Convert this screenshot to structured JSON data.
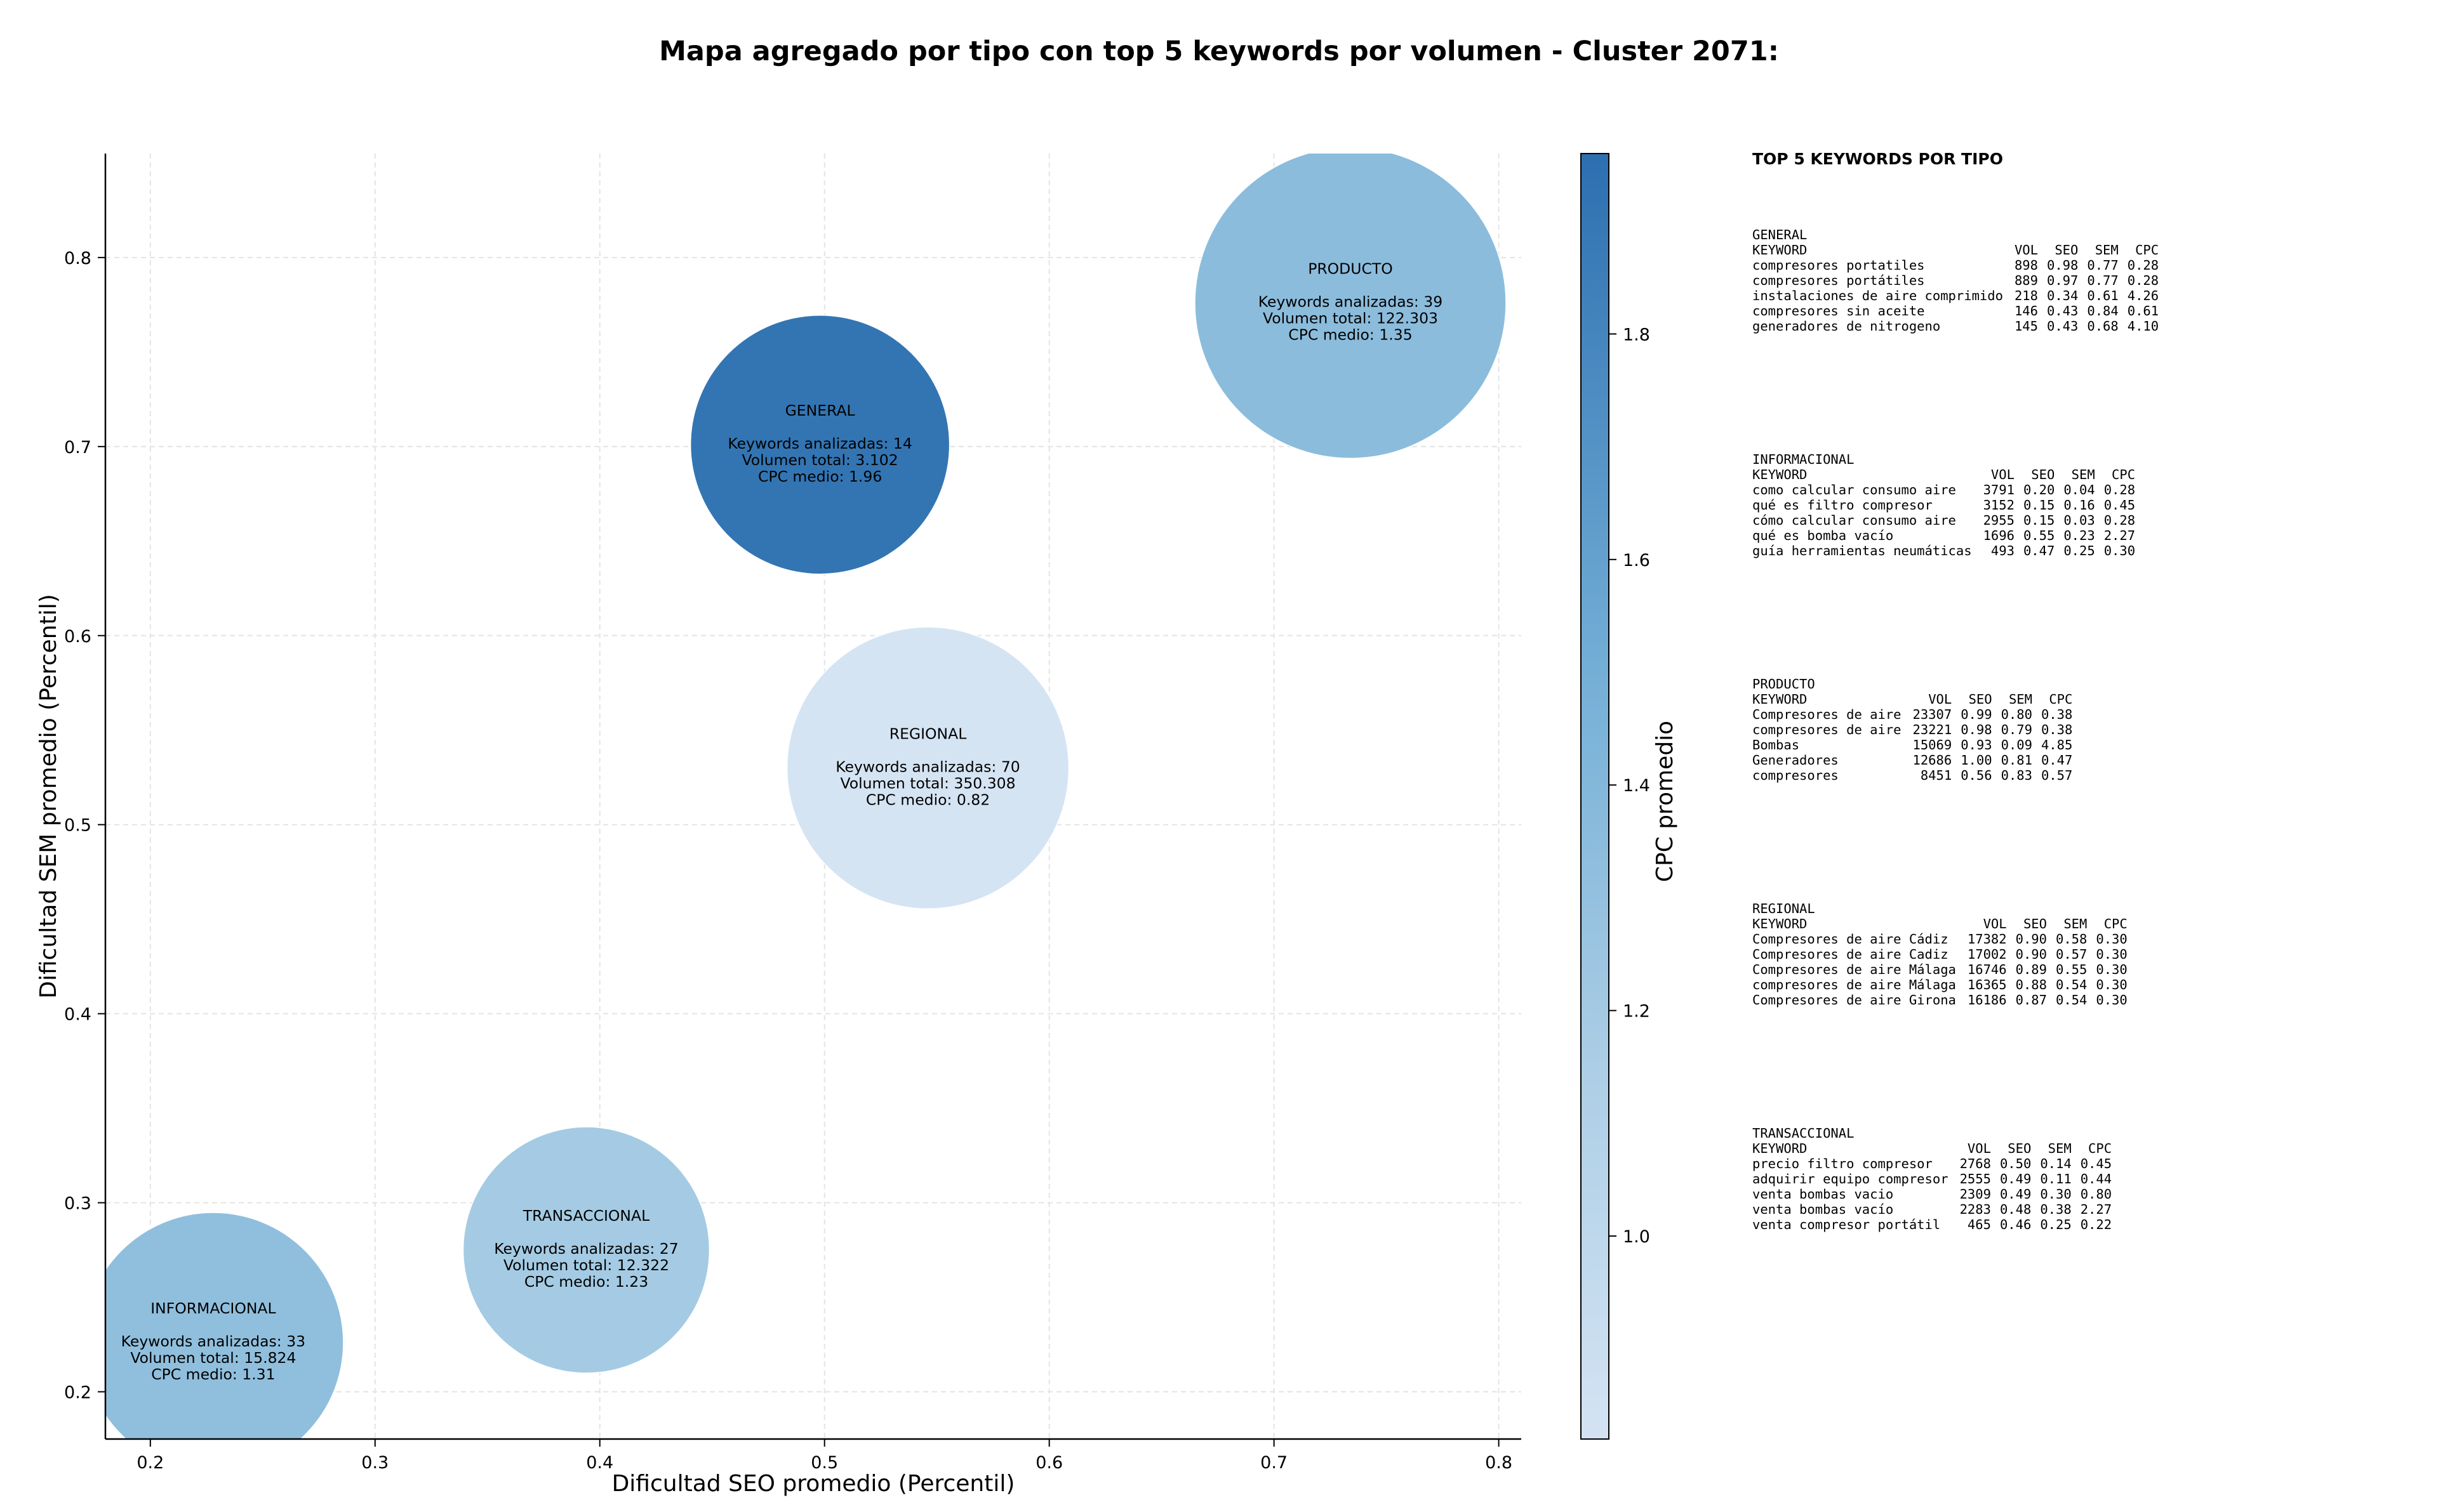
{
  "chart_data": {
    "type": "scatter",
    "title": "Mapa agregado por tipo con top 5 keywords por volumen - Cluster 2071:",
    "xlabel": "Dificultad SEO promedio (Percentil)",
    "ylabel": "Dificultad SEM promedio (Percentil)",
    "xlim": [
      0.18,
      0.81
    ],
    "ylim": [
      0.175,
      0.855
    ],
    "xticks": [
      "0.2",
      "0.3",
      "0.4",
      "0.5",
      "0.6",
      "0.7",
      "0.8"
    ],
    "yticks": [
      "0.2",
      "0.3",
      "0.4",
      "0.5",
      "0.6",
      "0.7",
      "0.8"
    ],
    "grid": true,
    "colorbar": {
      "label": "CPC promedio",
      "range": [
        0.82,
        1.96
      ],
      "ticks": [
        "1.0",
        "1.2",
        "1.4",
        "1.6",
        "1.8"
      ],
      "color_low": "#d4e3f3",
      "color_high": "#2c6fb0"
    },
    "bubbles": [
      {
        "name": "GENERAL",
        "x": 0.498,
        "y": 0.701,
        "cpc": 1.96,
        "color": "#2b6fb0",
        "lines": [
          "Keywords analizadas: 14",
          "Volumen total: 3.102",
          "CPC medio: 1.96"
        ]
      },
      {
        "name": "PRODUCTO",
        "x": 0.734,
        "y": 0.776,
        "cpc": 1.35,
        "color": "#86b9db",
        "lines": [
          "Keywords analizadas: 39",
          "Volumen total: 122.303",
          "CPC medio: 1.35"
        ]
      },
      {
        "name": "REGIONAL",
        "x": 0.546,
        "y": 0.53,
        "cpc": 0.82,
        "color": "#d3e3f3",
        "lines": [
          "Keywords analizadas: 70",
          "Volumen total: 350.308",
          "CPC medio: 0.82"
        ]
      },
      {
        "name": "TRANSACCIONAL",
        "x": 0.394,
        "y": 0.275,
        "cpc": 1.23,
        "color": "#a0c9e2",
        "lines": [
          "Keywords analizadas: 27",
          "Volumen total: 12.322",
          "CPC medio: 1.23"
        ]
      },
      {
        "name": "INFORMACIONAL",
        "x": 0.228,
        "y": 0.226,
        "cpc": 1.31,
        "color": "#8bbcdc",
        "lines": [
          "Keywords analizadas: 33",
          "Volumen total: 15.824",
          "CPC medio: 1.31"
        ]
      }
    ]
  },
  "panel": {
    "title": "TOP 5 KEYWORDS POR TIPO",
    "headers": [
      "KEYWORD",
      "VOL",
      "SEO",
      "SEM",
      "CPC"
    ],
    "groups": [
      {
        "name": "GENERAL",
        "rows": [
          [
            "compresores portatiles",
            "898",
            "0.98",
            "0.77",
            "0.28"
          ],
          [
            "compresores portátiles",
            "889",
            "0.97",
            "0.77",
            "0.28"
          ],
          [
            "instalaciones de aire comprimido",
            "218",
            "0.34",
            "0.61",
            "4.26"
          ],
          [
            "compresores sin aceite",
            "146",
            "0.43",
            "0.84",
            "0.61"
          ],
          [
            "generadores de nitrogeno",
            "145",
            "0.43",
            "0.68",
            "4.10"
          ]
        ]
      },
      {
        "name": "INFORMACIONAL",
        "rows": [
          [
            "como calcular consumo aire",
            "3791",
            "0.20",
            "0.04",
            "0.28"
          ],
          [
            "qué es filtro compresor",
            "3152",
            "0.15",
            "0.16",
            "0.45"
          ],
          [
            "cómo calcular consumo aire",
            "2955",
            "0.15",
            "0.03",
            "0.28"
          ],
          [
            "qué es bomba vacío",
            "1696",
            "0.55",
            "0.23",
            "2.27"
          ],
          [
            "guía herramientas neumáticas",
            "493",
            "0.47",
            "0.25",
            "0.30"
          ]
        ]
      },
      {
        "name": "PRODUCTO",
        "rows": [
          [
            "Compresores de aire",
            "23307",
            "0.99",
            "0.80",
            "0.38"
          ],
          [
            "compresores de aire",
            "23221",
            "0.98",
            "0.79",
            "0.38"
          ],
          [
            "Bombas",
            "15069",
            "0.93",
            "0.09",
            "4.85"
          ],
          [
            "Generadores",
            "12686",
            "1.00",
            "0.81",
            "0.47"
          ],
          [
            "compresores",
            "8451",
            "0.56",
            "0.83",
            "0.57"
          ]
        ]
      },
      {
        "name": "REGIONAL",
        "rows": [
          [
            "Compresores de aire Cádiz",
            "17382",
            "0.90",
            "0.58",
            "0.30"
          ],
          [
            "Compresores de aire Cadiz",
            "17002",
            "0.90",
            "0.57",
            "0.30"
          ],
          [
            "Compresores de aire Málaga",
            "16746",
            "0.89",
            "0.55",
            "0.30"
          ],
          [
            "compresores de aire Málaga",
            "16365",
            "0.88",
            "0.54",
            "0.30"
          ],
          [
            "Compresores de aire Girona",
            "16186",
            "0.87",
            "0.54",
            "0.30"
          ]
        ]
      },
      {
        "name": "TRANSACCIONAL",
        "rows": [
          [
            "precio filtro compresor",
            "2768",
            "0.50",
            "0.14",
            "0.45"
          ],
          [
            "adquirir equipo compresor",
            "2555",
            "0.49",
            "0.11",
            "0.44"
          ],
          [
            "venta bombas vacio",
            "2309",
            "0.49",
            "0.30",
            "0.80"
          ],
          [
            "venta bombas vacío",
            "2283",
            "0.48",
            "0.38",
            "2.27"
          ],
          [
            "venta compresor portátil",
            "465",
            "0.46",
            "0.25",
            "0.22"
          ]
        ]
      }
    ]
  }
}
